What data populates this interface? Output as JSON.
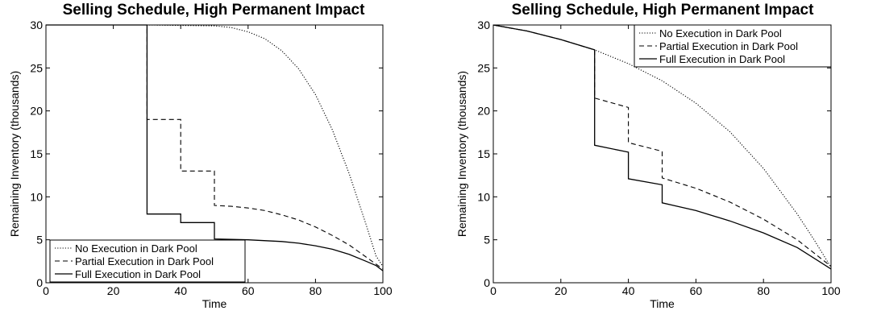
{
  "chart_data": [
    {
      "type": "line",
      "title": "Selling Schedule, High Permanent Impact",
      "xlabel": "Time",
      "ylabel": "Remaining Inventory (thousands)",
      "xlim": [
        0,
        100
      ],
      "ylim": [
        0,
        30
      ],
      "xticks": [
        0,
        20,
        40,
        60,
        80,
        100
      ],
      "yticks": [
        0,
        5,
        10,
        15,
        20,
        25,
        30
      ],
      "grid": false,
      "legend_position": "bottom-left",
      "series": [
        {
          "name": "No Execution in Dark Pool",
          "style": "dotted",
          "x": [
            0,
            30,
            50,
            55,
            60,
            65,
            70,
            75,
            80,
            85,
            90,
            95,
            98,
            100
          ],
          "y": [
            30,
            30,
            29.9,
            29.7,
            29.2,
            28.4,
            27.0,
            24.9,
            21.9,
            17.8,
            12.7,
            6.8,
            3.1,
            1.9
          ]
        },
        {
          "name": "Partial Execution in Dark Pool",
          "style": "dashed",
          "x": [
            0,
            30,
            30,
            40,
            40,
            50,
            50,
            55,
            60,
            65,
            70,
            75,
            80,
            85,
            90,
            95,
            100
          ],
          "y": [
            30,
            30,
            19,
            19,
            13,
            13,
            9,
            8.9,
            8.7,
            8.4,
            7.9,
            7.3,
            6.5,
            5.5,
            4.4,
            3.0,
            1.6
          ]
        },
        {
          "name": "Full Execution in Dark Pool",
          "style": "solid",
          "x": [
            0,
            30,
            30,
            40,
            40,
            50,
            50,
            60,
            70,
            75,
            80,
            85,
            90,
            95,
            98,
            100
          ],
          "y": [
            30,
            30,
            8,
            8,
            7,
            7,
            5.1,
            5.0,
            4.8,
            4.6,
            4.3,
            3.9,
            3.3,
            2.5,
            2.0,
            1.4
          ]
        }
      ]
    },
    {
      "type": "line",
      "title": "Selling Schedule, High Permanent Impact",
      "xlabel": "Time",
      "ylabel": "Remaining Inventory (thousands)",
      "xlim": [
        0,
        100
      ],
      "ylim": [
        0,
        30
      ],
      "xticks": [
        0,
        20,
        40,
        60,
        80,
        100
      ],
      "yticks": [
        0,
        5,
        10,
        15,
        20,
        25,
        30
      ],
      "grid": false,
      "legend_position": "top-right",
      "series": [
        {
          "name": "No Execution in Dark Pool",
          "style": "dotted",
          "x": [
            0,
            10,
            20,
            30,
            40,
            50,
            60,
            70,
            80,
            90,
            95,
            100
          ],
          "y": [
            30,
            29.3,
            28.3,
            27.1,
            25.5,
            23.5,
            20.9,
            17.6,
            13.3,
            8.0,
            5.0,
            1.8
          ]
        },
        {
          "name": "Partial Execution in Dark Pool",
          "style": "dashed",
          "x": [
            0,
            10,
            20,
            30,
            30,
            40,
            40,
            50,
            50,
            60,
            70,
            80,
            90,
            100
          ],
          "y": [
            30,
            29.3,
            28.3,
            27.1,
            21.5,
            20.4,
            16.3,
            15.3,
            12.2,
            11.0,
            9.4,
            7.4,
            5.0,
            1.9
          ]
        },
        {
          "name": "Full Execution in Dark Pool",
          "style": "solid",
          "x": [
            0,
            10,
            20,
            30,
            30,
            40,
            40,
            50,
            50,
            60,
            70,
            80,
            90,
            100
          ],
          "y": [
            30,
            29.3,
            28.3,
            27.1,
            16.0,
            15.2,
            12.1,
            11.4,
            9.3,
            8.4,
            7.2,
            5.8,
            4.1,
            1.6
          ]
        }
      ]
    }
  ]
}
